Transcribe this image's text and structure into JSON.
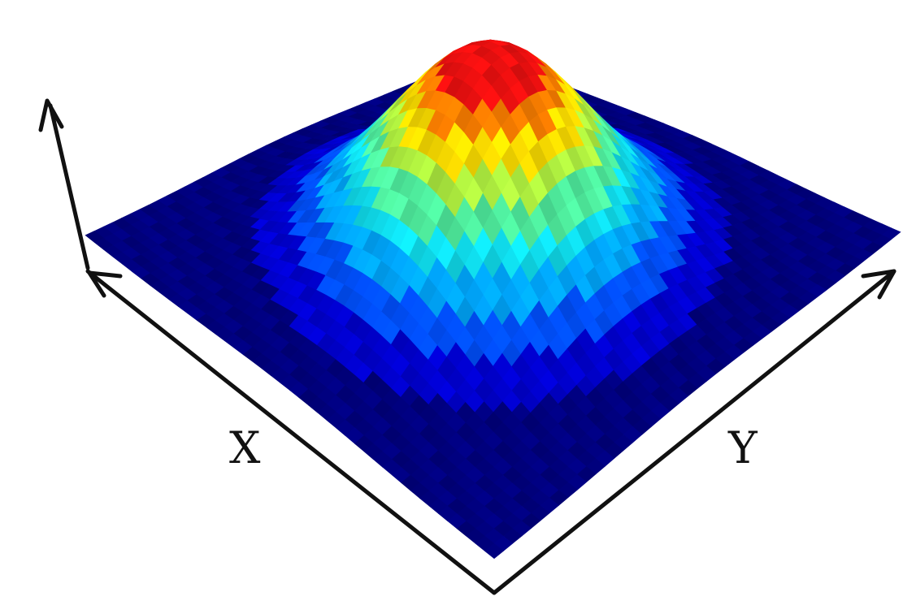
{
  "chart_data": {
    "type": "surface",
    "title": "",
    "xlabel": "X",
    "ylabel": "Y",
    "zlabel": "",
    "colormap": "jet",
    "grid": false,
    "legend": false,
    "shape": "single central peak (Gaussian-like dome)",
    "peak": {
      "x": 0.5,
      "y": 0.5,
      "z": 1.0
    },
    "surface_levels": [
      0.1,
      0.2,
      0.3,
      0.4,
      0.5,
      0.6,
      0.7,
      0.8,
      0.9,
      1.0
    ],
    "level_colors": [
      "#00007f",
      "#0000d0",
      "#0050ff",
      "#00a8ff",
      "#10e0f0",
      "#50f0a0",
      "#b0f040",
      "#ffe000",
      "#ff8000",
      "#ee1010"
    ]
  }
}
